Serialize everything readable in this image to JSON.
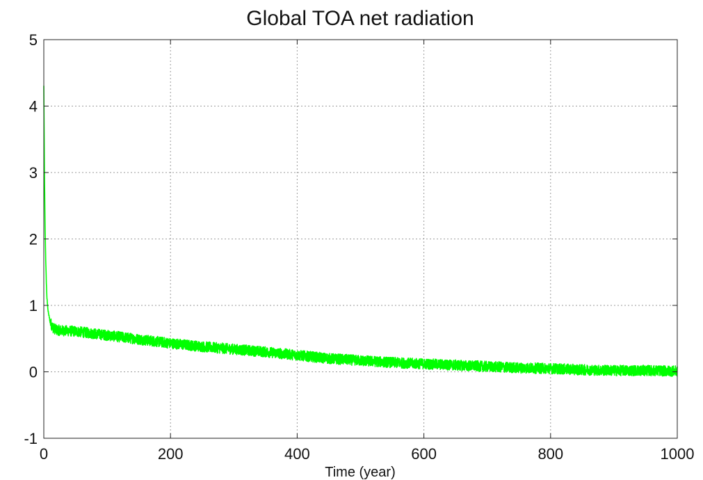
{
  "chart_data": {
    "type": "line",
    "title": "Global TOA net radiation",
    "xlabel": "Time (year)",
    "ylabel": "",
    "xlim": [
      0,
      1000
    ],
    "ylim": [
      -1,
      5
    ],
    "xticks": [
      0,
      200,
      400,
      600,
      800,
      1000
    ],
    "yticks": [
      -1,
      0,
      1,
      2,
      3,
      4,
      5
    ],
    "xtick_labels": [
      "0",
      "200",
      "400",
      "600",
      "800",
      "1000"
    ],
    "ytick_labels": [
      "-1",
      "0",
      "1",
      "2",
      "3",
      "4",
      "5"
    ],
    "grid": true,
    "legend": "none",
    "series": [
      {
        "color": "#00ff00",
        "noise_amplitude": 0.08,
        "x": [
          0,
          1,
          2,
          3,
          4,
          5,
          7,
          10,
          15,
          20,
          30,
          50,
          100,
          150,
          200,
          250,
          300,
          350,
          400,
          450,
          500,
          550,
          600,
          650,
          700,
          750,
          800,
          850,
          900,
          950,
          1000
        ],
        "y": [
          4.3,
          3.0,
          2.2,
          1.7,
          1.35,
          1.1,
          0.9,
          0.75,
          0.66,
          0.63,
          0.62,
          0.61,
          0.55,
          0.49,
          0.43,
          0.38,
          0.34,
          0.3,
          0.25,
          0.2,
          0.17,
          0.14,
          0.12,
          0.1,
          0.08,
          0.06,
          0.05,
          0.03,
          0.02,
          0.02,
          0.01
        ]
      }
    ]
  }
}
